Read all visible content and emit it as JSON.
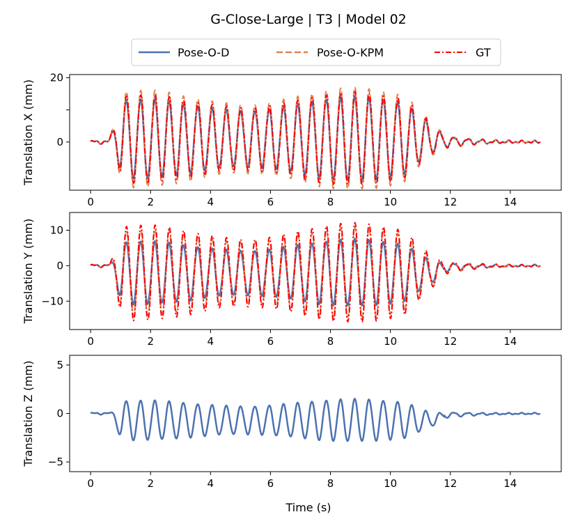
{
  "chart_data": {
    "type": "line",
    "title": "G-Close-Large | T3 | Model 02",
    "xlabel": "Time (s)",
    "legend": {
      "placement": "top-center",
      "entries": [
        "Pose-O-D",
        "Pose-O-KPM",
        "GT"
      ]
    },
    "series_styles": [
      {
        "name": "Pose-O-D",
        "color": "#4c72b0",
        "dash": "solid"
      },
      {
        "name": "Pose-O-KPM",
        "color": "#dd8452",
        "dash": "dashed"
      },
      {
        "name": "GT",
        "color": "#ff0000",
        "dash": "dashdot"
      }
    ],
    "signal": {
      "t_start": 0,
      "t_end": 15,
      "onset_time": 0.6,
      "dominant_frequency_hz": 2.1,
      "decay_start_time": 10.5,
      "decay_end_time": 11.8
    },
    "subplots": [
      {
        "ylabel": "Translation X (mm)",
        "xlim": [
          -0.7,
          15.7
        ],
        "ylim": [
          -15,
          21
        ],
        "xticks": [
          0,
          2,
          4,
          6,
          8,
          10,
          12,
          14
        ],
        "yticks": [
          0,
          10,
          20
        ],
        "ytick_labels": [
          "0",
          "",
          "20"
        ],
        "series": [
          "Pose-O-D",
          "Pose-O-KPM",
          "GT"
        ],
        "oscillation_center_mm": 1,
        "peak_amplitude_mm": 14,
        "residual_amplitude_mm": 0.8,
        "series_scale": {
          "Pose-O-D": 0.9,
          "Pose-O-KPM": 1.1,
          "GT": 1.0
        }
      },
      {
        "ylabel": "Translation Y (mm)",
        "xlim": [
          -0.7,
          15.7
        ],
        "ylim": [
          -18,
          15
        ],
        "xticks": [
          0,
          2,
          4,
          6,
          8,
          10,
          12,
          14
        ],
        "yticks": [
          -10,
          0,
          10
        ],
        "ytick_labels": [
          "−10",
          "0",
          "10"
        ],
        "series": [
          "Pose-O-D",
          "Pose-O-KPM",
          "GT"
        ],
        "oscillation_center_mm": -2,
        "peak_amplitude_mm": 13,
        "residual_amplitude_mm": 0.6,
        "series_scale": {
          "Pose-O-D": 0.7,
          "Pose-O-KPM": 0.95,
          "GT": 1.05
        }
      },
      {
        "ylabel": "Translation Z (mm)",
        "xlim": [
          -0.7,
          15.7
        ],
        "ylim": [
          -6,
          6
        ],
        "xticks": [
          0,
          2,
          4,
          6,
          8,
          10,
          12,
          14
        ],
        "yticks": [
          -5,
          0,
          5
        ],
        "ytick_labels": [
          "−5",
          "0",
          "5"
        ],
        "series": [
          "Pose-O-D"
        ],
        "oscillation_center_mm": -0.7,
        "peak_amplitude_mm": 2.1,
        "residual_amplitude_mm": 0.15,
        "series_scale": {
          "Pose-O-D": 1.0
        }
      }
    ]
  }
}
